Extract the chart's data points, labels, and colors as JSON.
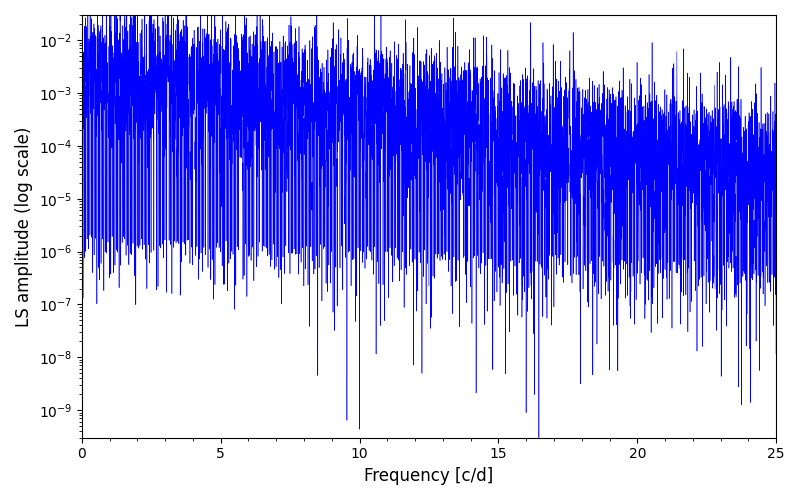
{
  "title": "",
  "xlabel": "Frequency [c/d]",
  "ylabel": "LS amplitude (log scale)",
  "line_color": "#0000ff",
  "xlim": [
    0,
    25
  ],
  "ylim": [
    3e-10,
    0.03
  ],
  "figsize": [
    8.0,
    5.0
  ],
  "dpi": 100,
  "seed": 42,
  "freq_max": 25.0,
  "base_amplitude": 0.005,
  "decay_rate": 0.18,
  "noise_base": 1e-06,
  "noise_decay": 0.05,
  "n_points": 8000,
  "background_color": "#ffffff"
}
